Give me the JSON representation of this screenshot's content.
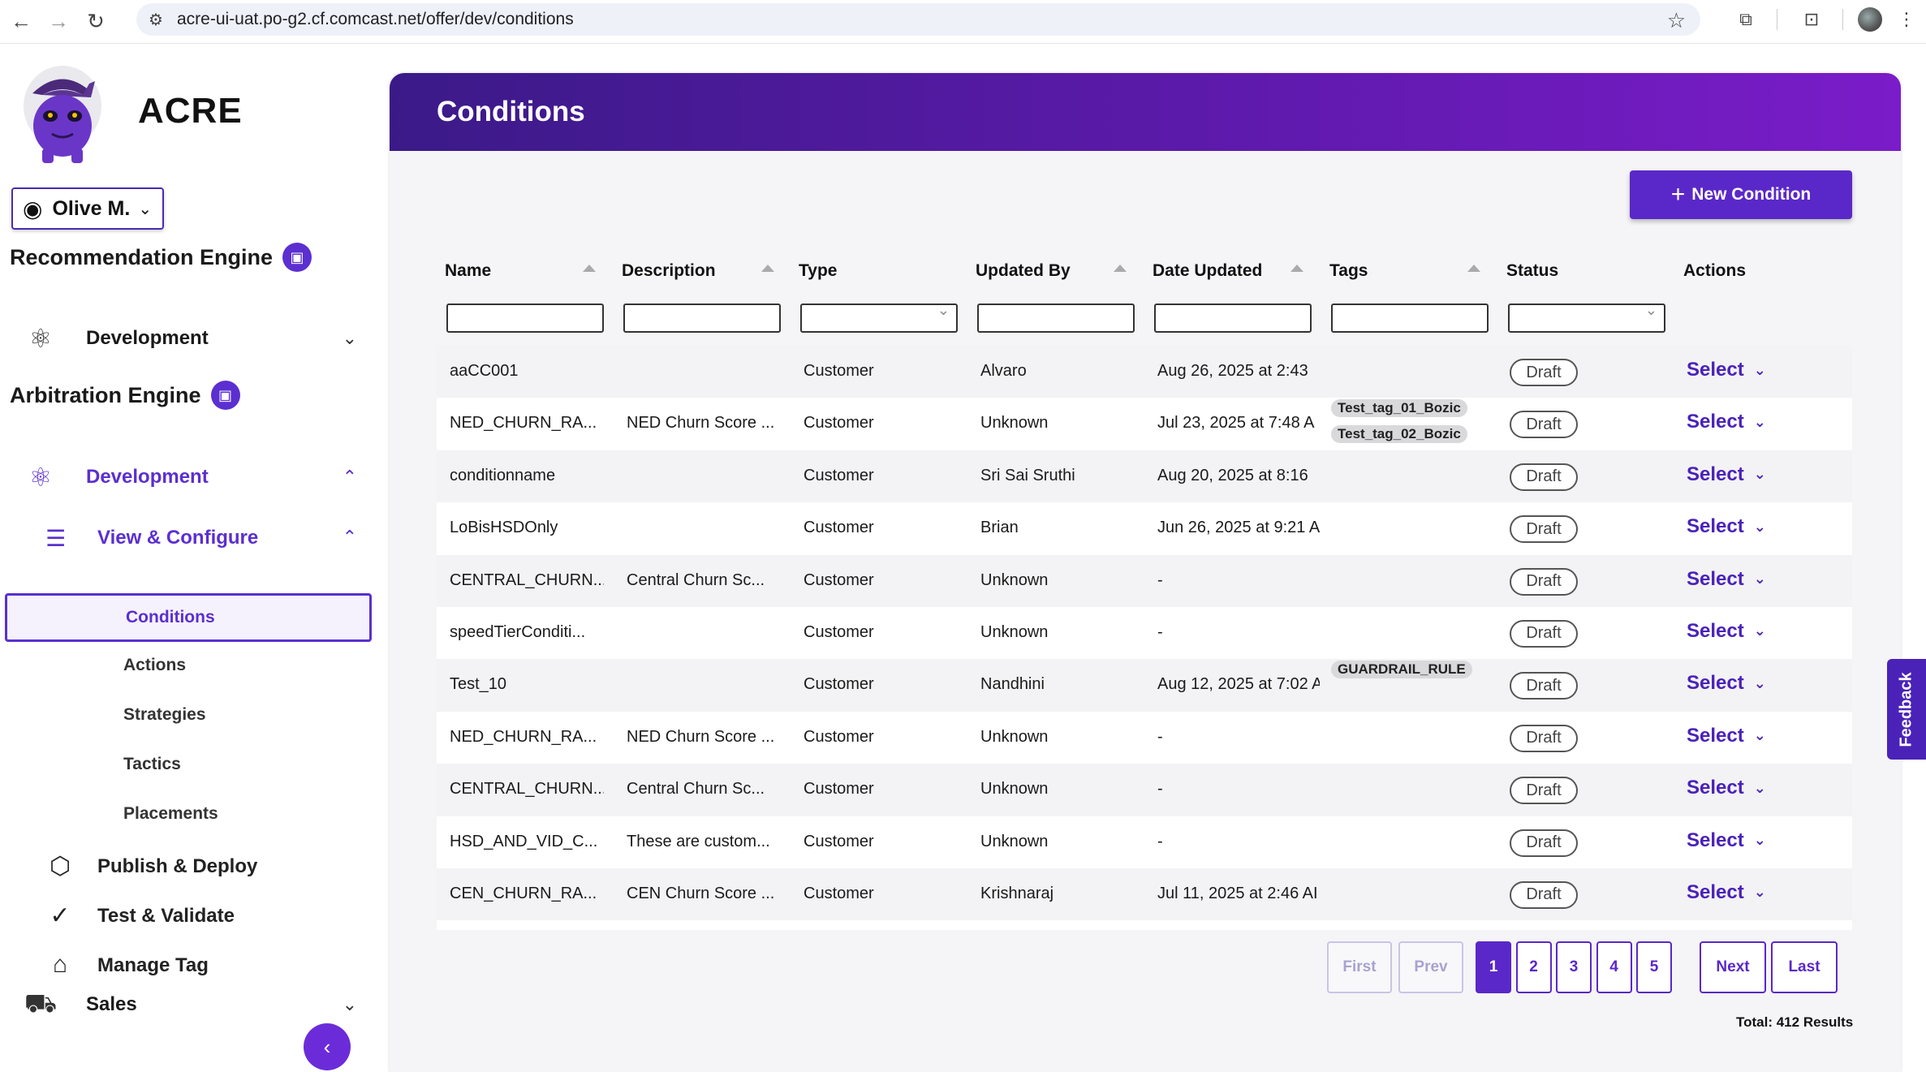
{
  "browser": {
    "url": "acre-ui-uat.po-g2.cf.comcast.net/offer/dev/conditions"
  },
  "sidebar": {
    "app_name": "ACRE",
    "user": "Olive M.",
    "recommendation_engine": {
      "title": "Recommendation Engine",
      "development": "Development"
    },
    "arbitration_engine": {
      "title": "Arbitration Engine",
      "development": "Development",
      "view_configure": "View & Configure",
      "leaves": [
        "Conditions",
        "Actions",
        "Strategies",
        "Tactics",
        "Placements"
      ],
      "publish": "Publish & Deploy",
      "test": "Test & Validate",
      "manage_tag": "Manage Tag"
    },
    "sales": "Sales"
  },
  "main": {
    "title": "Conditions",
    "new_button": "New Condition",
    "columns": [
      "Name",
      "Description",
      "Type",
      "Updated By",
      "Date Updated",
      "Tags",
      "Status",
      "Actions"
    ],
    "rows": [
      {
        "name": "aaCC001",
        "description": "",
        "type": "Customer",
        "updated_by": "Alvaro",
        "date": "Aug 26, 2025 at 2:43",
        "tags": [],
        "status": "Draft",
        "action": "Select"
      },
      {
        "name": "NED_CHURN_RA...",
        "description": "NED Churn Score ...",
        "type": "Customer",
        "updated_by": "Unknown",
        "date": "Jul 23, 2025 at 7:48 A",
        "tags": [
          "Test_tag_01_Bozic",
          "Test_tag_02_Bozic"
        ],
        "status": "Draft",
        "action": "Select"
      },
      {
        "name": "conditionname",
        "description": "",
        "type": "Customer",
        "updated_by": "Sri Sai Sruthi",
        "date": "Aug 20, 2025 at 8:16",
        "tags": [],
        "status": "Draft",
        "action": "Select"
      },
      {
        "name": "LoBisHSDOnly",
        "description": "",
        "type": "Customer",
        "updated_by": "Brian",
        "date": "Jun 26, 2025 at 9:21 A",
        "tags": [],
        "status": "Draft",
        "action": "Select"
      },
      {
        "name": "CENTRAL_CHURN...",
        "description": "Central Churn Sc...",
        "type": "Customer",
        "updated_by": "Unknown",
        "date": "-",
        "tags": [],
        "status": "Draft",
        "action": "Select"
      },
      {
        "name": "speedTierConditi...",
        "description": "",
        "type": "Customer",
        "updated_by": "Unknown",
        "date": "-",
        "tags": [],
        "status": "Draft",
        "action": "Select"
      },
      {
        "name": "Test_10",
        "description": "",
        "type": "Customer",
        "updated_by": "Nandhini",
        "date": "Aug 12, 2025 at 7:02 A",
        "tags": [
          "GUARDRAIL_RULE"
        ],
        "status": "Draft",
        "action": "Select"
      },
      {
        "name": "NED_CHURN_RA...",
        "description": "NED Churn Score ...",
        "type": "Customer",
        "updated_by": "Unknown",
        "date": "-",
        "tags": [],
        "status": "Draft",
        "action": "Select"
      },
      {
        "name": "CENTRAL_CHURN...",
        "description": "Central Churn Sc...",
        "type": "Customer",
        "updated_by": "Unknown",
        "date": "-",
        "tags": [],
        "status": "Draft",
        "action": "Select"
      },
      {
        "name": "HSD_AND_VID_C...",
        "description": "These are custom...",
        "type": "Customer",
        "updated_by": "Unknown",
        "date": "-",
        "tags": [],
        "status": "Draft",
        "action": "Select"
      },
      {
        "name": "CEN_CHURN_RA...",
        "description": "CEN Churn Score ...",
        "type": "Customer",
        "updated_by": "Krishnaraj",
        "date": "Jul 11, 2025 at 2:46 AI",
        "tags": [],
        "status": "Draft",
        "action": "Select"
      }
    ],
    "pagination": {
      "first": "First",
      "prev": "Prev",
      "pages": [
        "1",
        "2",
        "3",
        "4",
        "5"
      ],
      "current": "1",
      "next": "Next",
      "last": "Last"
    },
    "total": "Total: 412 Results"
  },
  "feedback": "Feedback",
  "colors": {
    "accent": "#5a28c8",
    "header_start": "#3b1a88",
    "header_end": "#7a1cc9"
  }
}
